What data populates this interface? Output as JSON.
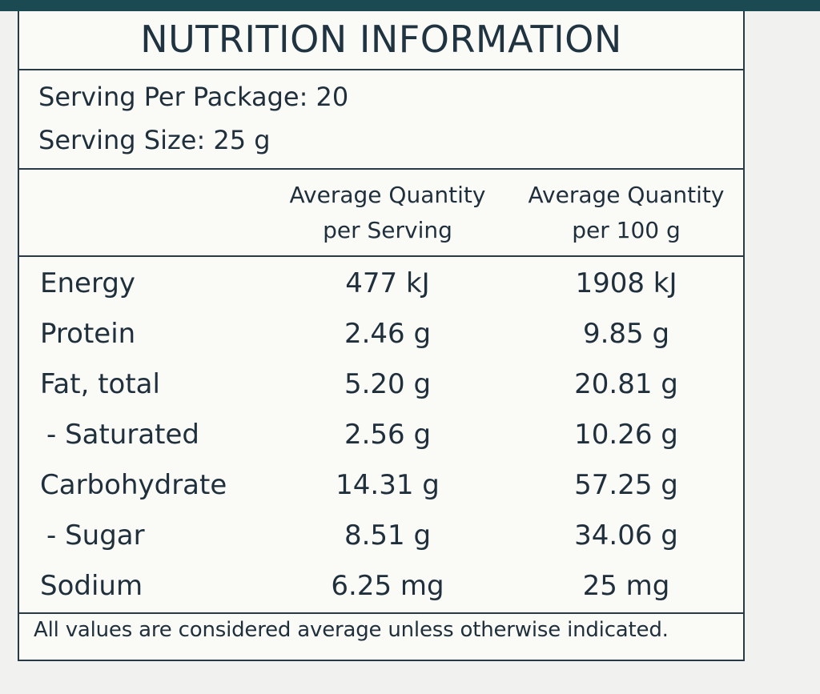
{
  "label": {
    "title": "NUTRITION INFORMATION",
    "servings_per_package": "Serving Per Package: 20",
    "serving_size": "Serving Size: 25 g",
    "column_headers": {
      "per_serving_line1": "Average Quantity",
      "per_serving_line2": "per Serving",
      "per_100g_line1": "Average Quantity",
      "per_100g_line2": "per 100 g"
    },
    "rows": [
      {
        "nutrient": "Energy",
        "per_serving": "477 kJ",
        "per_100g": "1908 kJ"
      },
      {
        "nutrient": "Protein",
        "per_serving": "2.46 g",
        "per_100g": "9.85 g"
      },
      {
        "nutrient": "Fat, total",
        "per_serving": "5.20 g",
        "per_100g": "20.81 g"
      },
      {
        "nutrient": "- Saturated",
        "per_serving": "2.56 g",
        "per_100g": "10.26 g"
      },
      {
        "nutrient": "Carbohydrate",
        "per_serving": "14.31 g",
        "per_100g": "57.25 g"
      },
      {
        "nutrient": "- Sugar",
        "per_serving": "8.51 g",
        "per_100g": "34.06 g"
      },
      {
        "nutrient": "Sodium",
        "per_serving": "6.25 mg",
        "per_100g": "25 mg"
      }
    ],
    "footnote": "All values are considered average unless otherwise indicated."
  },
  "colors": {
    "band": "#1c4a52",
    "text": "#1f2f3b",
    "border": "#2a3a44",
    "background": "#fafaf7"
  }
}
